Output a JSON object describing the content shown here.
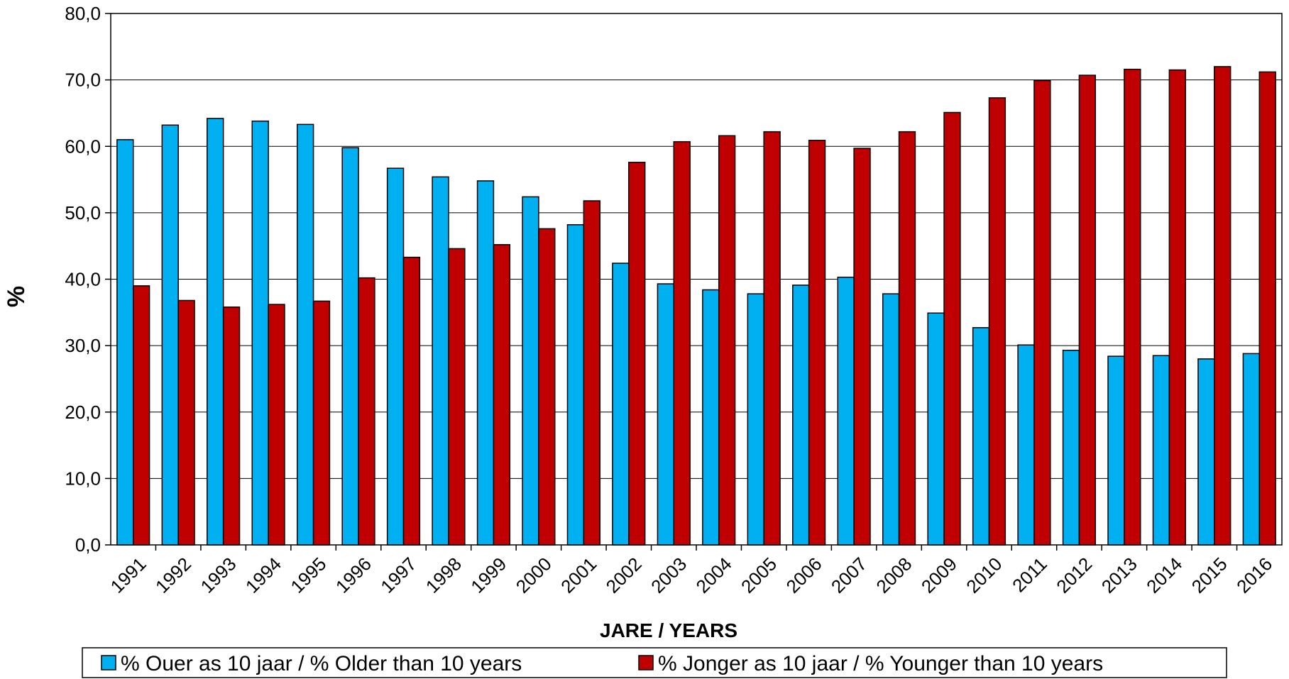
{
  "chart_data": {
    "type": "bar",
    "xlabel": "JARE / YEARS",
    "ylabel": "%",
    "ylim": [
      0,
      80
    ],
    "ytick_step": 10,
    "ytick_decimal_separator": ",",
    "grid": true,
    "legend_position": "bottom",
    "categories": [
      "1991",
      "1992",
      "1993",
      "1994",
      "1995",
      "1996",
      "1997",
      "1998",
      "1999",
      "2000",
      "2001",
      "2002",
      "2003",
      "2004",
      "2005",
      "2006",
      "2007",
      "2008",
      "2009",
      "2010",
      "2011",
      "2012",
      "2013",
      "2014",
      "2015",
      "2016"
    ],
    "series": [
      {
        "name": "% Ouer as 10 jaar / % Older than 10 years",
        "color": "#00B0F0",
        "values": [
          61.0,
          63.2,
          64.2,
          63.8,
          63.3,
          59.8,
          56.7,
          55.4,
          54.8,
          52.4,
          48.2,
          42.4,
          39.3,
          38.4,
          37.8,
          39.1,
          40.3,
          37.8,
          34.9,
          32.7,
          30.1,
          29.3,
          28.4,
          28.5,
          28.0,
          28.8
        ]
      },
      {
        "name": "% Jonger as 10 jaar / % Younger than 10 years",
        "color": "#C00000",
        "values": [
          39.0,
          36.8,
          35.8,
          36.2,
          36.7,
          40.2,
          43.3,
          44.6,
          45.2,
          47.6,
          51.8,
          57.6,
          60.7,
          61.6,
          62.2,
          60.9,
          59.7,
          62.2,
          65.1,
          67.3,
          69.9,
          70.7,
          71.6,
          71.5,
          72.0,
          71.2
        ]
      }
    ]
  }
}
